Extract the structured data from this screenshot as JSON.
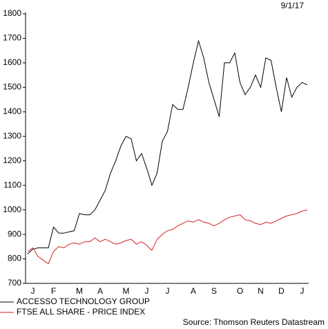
{
  "chart_data": {
    "type": "line",
    "date": "9/1/17",
    "source": "Source: Thomson Reuters Datastream",
    "categories": [
      null,
      "J",
      null,
      null,
      null,
      "F",
      null,
      null,
      null,
      null,
      "M",
      null,
      null,
      null,
      "A",
      null,
      null,
      null,
      null,
      "M",
      null,
      null,
      null,
      "J",
      null,
      null,
      null,
      "J",
      null,
      null,
      null,
      null,
      "A",
      null,
      null,
      null,
      "S",
      null,
      null,
      null,
      null,
      "O",
      null,
      null,
      null,
      "N",
      null,
      null,
      null,
      "D",
      null,
      null,
      null,
      "J",
      null
    ],
    "series": [
      {
        "name": "ACCESSO TECHNOLOGY GROUP",
        "color": "#000000",
        "values": [
          820,
          840,
          845,
          845,
          845,
          930,
          905,
          905,
          910,
          915,
          985,
          980,
          980,
          1000,
          1040,
          1080,
          1150,
          1200,
          1260,
          1300,
          1290,
          1200,
          1230,
          1170,
          1100,
          1150,
          1280,
          1320,
          1430,
          1410,
          1410,
          1500,
          1600,
          1690,
          1620,
          1520,
          1450,
          1380,
          1600,
          1600,
          1640,
          1520,
          1470,
          1500,
          1550,
          1500,
          1620,
          1610,
          1500,
          1400,
          1540,
          1460,
          1500,
          1520,
          1510
        ]
      },
      {
        "name": "FTSE ALL SHARE - PRICE INDEX",
        "color": "#d42020",
        "values": [
          830,
          845,
          810,
          795,
          780,
          830,
          850,
          845,
          860,
          865,
          860,
          870,
          870,
          885,
          870,
          880,
          870,
          860,
          865,
          875,
          880,
          860,
          870,
          855,
          835,
          880,
          900,
          915,
          920,
          935,
          945,
          955,
          950,
          960,
          950,
          945,
          935,
          945,
          960,
          970,
          975,
          980,
          960,
          955,
          945,
          940,
          950,
          945,
          955,
          965,
          975,
          980,
          985,
          995,
          1000
        ]
      }
    ],
    "ylim": [
      700,
      1800
    ],
    "yticks": [
      700,
      800,
      900,
      1000,
      1100,
      1200,
      1300,
      1400,
      1500,
      1600,
      1700,
      1800
    ]
  }
}
